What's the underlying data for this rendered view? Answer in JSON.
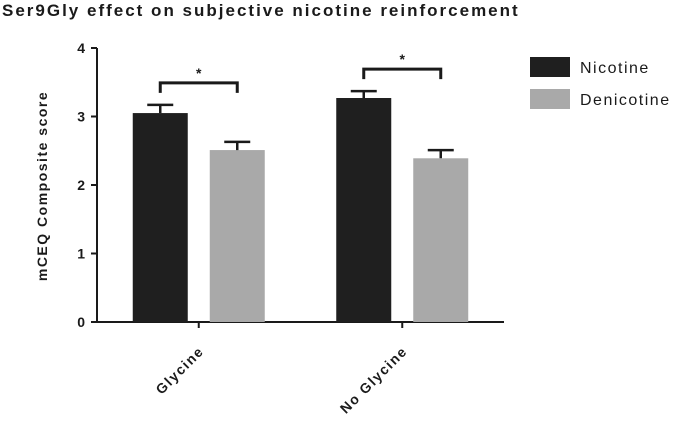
{
  "chart_data": {
    "type": "bar",
    "title": "Ser9Gly effect on subjective nicotine reinforcement",
    "y_label": "mCEQ Composite score",
    "categories": [
      "Glycine",
      "No Glycine"
    ],
    "series": [
      {
        "name": "Nicotine",
        "color": "#1f1f1f",
        "values": [
          3.05,
          3.27
        ],
        "errors": [
          0.12,
          0.1
        ]
      },
      {
        "name": "Denicotine",
        "color": "#a9a9a9",
        "values": [
          2.51,
          2.39
        ],
        "errors": [
          0.12,
          0.12
        ]
      }
    ],
    "annotations": [
      "*",
      "*"
    ],
    "ylim": [
      0,
      4
    ],
    "yticks": [
      0,
      1,
      2,
      3,
      4
    ],
    "legend": "right"
  }
}
